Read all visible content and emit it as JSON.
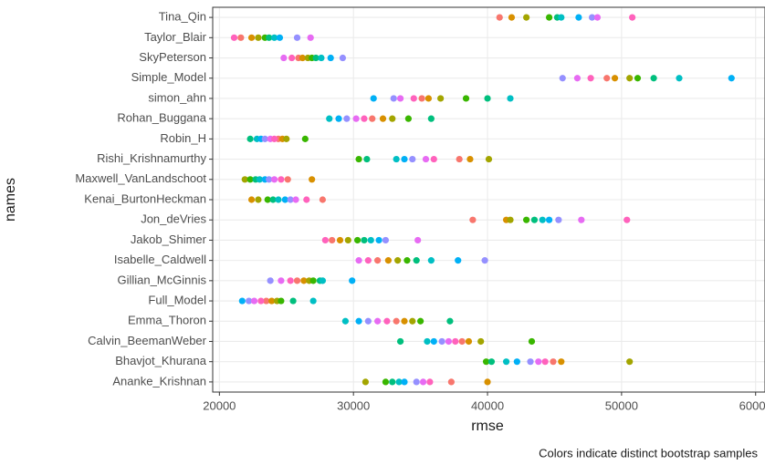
{
  "chart_data": {
    "type": "scatter",
    "x_label": "rmse",
    "y_label": "names",
    "caption": "Colors indicate distinct bootstrap samples",
    "categories": [
      "Tina_Qin",
      "Taylor_Blair",
      "SkyPeterson",
      "Simple_Model",
      "simon_ahn",
      "Rohan_Buggana",
      "Robin_H",
      "Rishi_Krishnamurthy",
      "Maxwell_VanLandschoot",
      "Kenai_BurtonHeckman",
      "Jon_deVries",
      "Jakob_Shimer",
      "Isabelle_Caldwell",
      "Gillian_McGinnis",
      "Full_Model",
      "Emma_Thoron",
      "Calvin_BeemanWeber",
      "Bhavjot_Khurana",
      "Ananke_Krishnan"
    ],
    "xlim": [
      19500,
      60700
    ],
    "xticks": [
      20000,
      30000,
      40000,
      50000,
      60000
    ],
    "grid": true,
    "series": [
      {
        "color": "#F8766D",
        "values": [
          40900,
          21600,
          25900,
          48900,
          35100,
          31400,
          24400,
          37900,
          25100,
          27700,
          38900,
          28400,
          31800,
          25800,
          23500,
          33200,
          38100,
          44900,
          37300
        ]
      },
      {
        "color": "#D89000",
        "values": [
          41800,
          22400,
          26200,
          49500,
          35600,
          32200,
          24700,
          38700,
          26900,
          22400,
          41400,
          29000,
          32600,
          26300,
          23900,
          33800,
          38600,
          45500,
          40000
        ]
      },
      {
        "color": "#A3A500",
        "values": [
          42900,
          22900,
          26600,
          50600,
          36500,
          32900,
          25000,
          40100,
          21900,
          22900,
          41700,
          29600,
          33300,
          26700,
          24300,
          34400,
          39500,
          50600,
          30900
        ]
      },
      {
        "color": "#39B600",
        "values": [
          44600,
          23400,
          26900,
          51200,
          38400,
          34100,
          26400,
          30400,
          22300,
          23600,
          42900,
          30300,
          34000,
          27000,
          24600,
          35000,
          43300,
          39900,
          32400
        ]
      },
      {
        "color": "#00BF7D",
        "values": [
          45200,
          23700,
          27200,
          52400,
          40000,
          35800,
          22300,
          31000,
          22700,
          24000,
          43500,
          30800,
          34700,
          27500,
          25500,
          37200,
          33500,
          40300,
          32900
        ]
      },
      {
        "color": "#00BFC4",
        "values": [
          45500,
          24100,
          27600,
          54300,
          41700,
          28200,
          22800,
          33200,
          23000,
          24400,
          44100,
          31300,
          35800,
          27700,
          27000,
          29400,
          35500,
          41400,
          33400
        ]
      },
      {
        "color": "#00B0F6",
        "values": [
          46800,
          24500,
          28300,
          58200,
          31500,
          28900,
          23100,
          33800,
          23400,
          24900,
          44600,
          31900,
          37800,
          29900,
          21700,
          30400,
          36000,
          42200,
          33800
        ]
      },
      {
        "color": "#9590FF",
        "values": [
          47800,
          25800,
          29200,
          45600,
          33000,
          29500,
          23400,
          34400,
          23700,
          25300,
          45300,
          32400,
          39800,
          23800,
          22200,
          31100,
          36600,
          43200,
          34700
        ]
      },
      {
        "color": "#E76BF3",
        "values": [
          48200,
          26800,
          24800,
          46700,
          33500,
          30200,
          23800,
          35400,
          24100,
          25700,
          47000,
          34800,
          30400,
          24600,
          22600,
          31800,
          37100,
          43800,
          35200
        ]
      },
      {
        "color": "#FF62BC",
        "values": [
          50800,
          21100,
          25400,
          47700,
          34500,
          30800,
          24100,
          36000,
          24600,
          26500,
          50400,
          27900,
          31100,
          25300,
          23100,
          32500,
          37600,
          44300,
          35700
        ]
      }
    ]
  }
}
